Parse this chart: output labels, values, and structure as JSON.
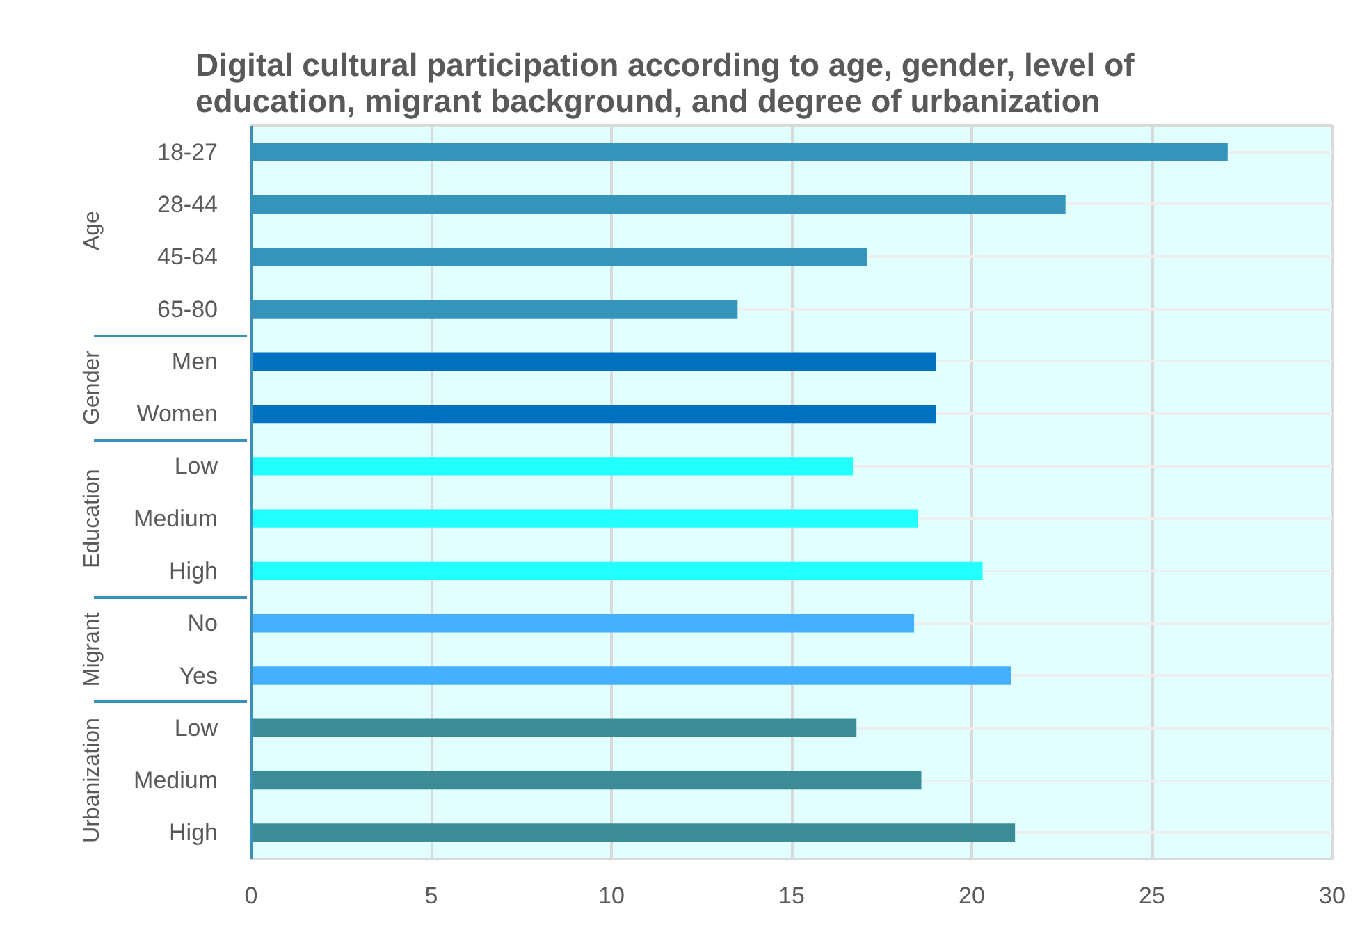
{
  "chart_data": {
    "type": "bar",
    "orientation": "horizontal",
    "title": "Digital cultural participation according to age, gender, level of education, migrant background, and degree of urbanization",
    "categories": [
      "18-27",
      "28-44",
      "45-64",
      "65-80",
      "Men",
      "Women",
      "Low",
      "Medium",
      "High",
      "No",
      "Yes",
      "Low",
      "Medium",
      "High"
    ],
    "series": [
      {
        "color": "#3494ba",
        "values": [
          27.1,
          22.6,
          17.1,
          13.5,
          null,
          null,
          null,
          null,
          null,
          null,
          null,
          null,
          null,
          null
        ]
      },
      {
        "color": "#0070c0",
        "values": [
          null,
          null,
          null,
          null,
          19.0,
          19.0,
          null,
          null,
          null,
          null,
          null,
          null,
          null,
          null
        ]
      },
      {
        "color": "#22ffff",
        "values": [
          null,
          null,
          null,
          null,
          null,
          null,
          16.7,
          18.5,
          20.3,
          null,
          null,
          null,
          null,
          null
        ]
      },
      {
        "color": "#45b0ff",
        "values": [
          null,
          null,
          null,
          null,
          null,
          null,
          null,
          null,
          null,
          18.4,
          21.1,
          null,
          null,
          null
        ]
      },
      {
        "color": "#3b8c96",
        "values": [
          null,
          null,
          null,
          null,
          null,
          null,
          null,
          null,
          null,
          null,
          null,
          16.8,
          18.6,
          21.2
        ]
      }
    ],
    "annotations": [
      "Age",
      "Gender",
      "Education",
      "Migrant",
      "Urbanization"
    ],
    "xlim": [
      0,
      30
    ],
    "xticks": [
      0,
      5,
      10,
      15,
      20,
      25,
      30
    ],
    "grid": true
  }
}
